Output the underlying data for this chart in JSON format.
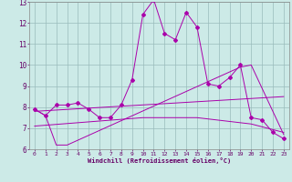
{
  "xlabel": "Windchill (Refroidissement éolien,°C)",
  "xlim": [
    -0.5,
    23.5
  ],
  "ylim": [
    6,
    13
  ],
  "xticks": [
    0,
    1,
    2,
    3,
    4,
    5,
    6,
    7,
    8,
    9,
    10,
    11,
    12,
    13,
    14,
    15,
    16,
    17,
    18,
    19,
    20,
    21,
    22,
    23
  ],
  "yticks": [
    6,
    7,
    8,
    9,
    10,
    11,
    12,
    13
  ],
  "bg_color": "#cceae7",
  "line_color": "#aa00aa",
  "grid_color": "#99bbbb",
  "line1_x": [
    0,
    1,
    2,
    3,
    4,
    5,
    6,
    7,
    8,
    9,
    10,
    11,
    12,
    13,
    14,
    15,
    16,
    17,
    18,
    19,
    20,
    21,
    22,
    23
  ],
  "line1_y": [
    7.9,
    7.6,
    8.1,
    8.1,
    8.2,
    7.9,
    7.5,
    7.5,
    8.1,
    9.3,
    12.4,
    13.1,
    11.5,
    11.2,
    12.5,
    11.8,
    9.1,
    9.0,
    9.4,
    10.0,
    7.5,
    7.4,
    6.8,
    6.5
  ],
  "line2_x": [
    0,
    1,
    2,
    3,
    19,
    20,
    23
  ],
  "line2_y": [
    7.9,
    7.6,
    6.2,
    6.2,
    9.9,
    10.0,
    6.7
  ],
  "line3_x": [
    0,
    23
  ],
  "line3_y": [
    7.8,
    8.5
  ],
  "line4_x": [
    0,
    5,
    10,
    15,
    20,
    23
  ],
  "line4_y": [
    7.1,
    7.3,
    7.5,
    7.5,
    7.2,
    6.8
  ]
}
